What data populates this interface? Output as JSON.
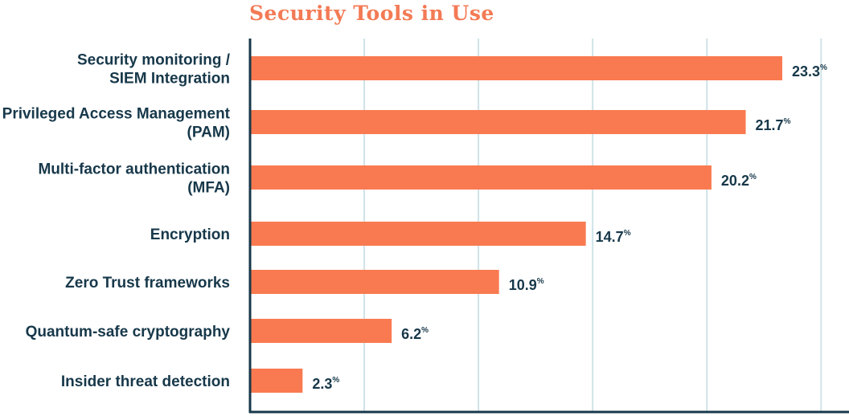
{
  "chart_data": {
    "type": "bar",
    "orientation": "horizontal",
    "title": "Security Tools in Use",
    "xlabel": "",
    "ylabel": "",
    "xlim": [
      0,
      25
    ],
    "grid": true,
    "value_suffix": "%",
    "categories": [
      [
        "Security monitoring /",
        "SIEM Integration"
      ],
      [
        "Privileged Access Management",
        "(PAM)"
      ],
      [
        "Multi-factor authentication",
        "(MFA)"
      ],
      [
        "Encryption"
      ],
      [
        "Zero Trust frameworks"
      ],
      [
        "Quantum-safe cryptography"
      ],
      [
        "Insider threat detection"
      ]
    ],
    "values": [
      23.3,
      21.7,
      20.2,
      14.7,
      10.9,
      6.2,
      2.3
    ],
    "value_labels": [
      "23.3",
      "21.7",
      "20.2",
      "14.7",
      "10.9",
      "6.2",
      "2.3"
    ]
  },
  "colors": {
    "bar": "#f97a50",
    "title": "#f37a55",
    "text": "#17384a",
    "grid": "#cfe3e8",
    "axis": "#17384a"
  }
}
